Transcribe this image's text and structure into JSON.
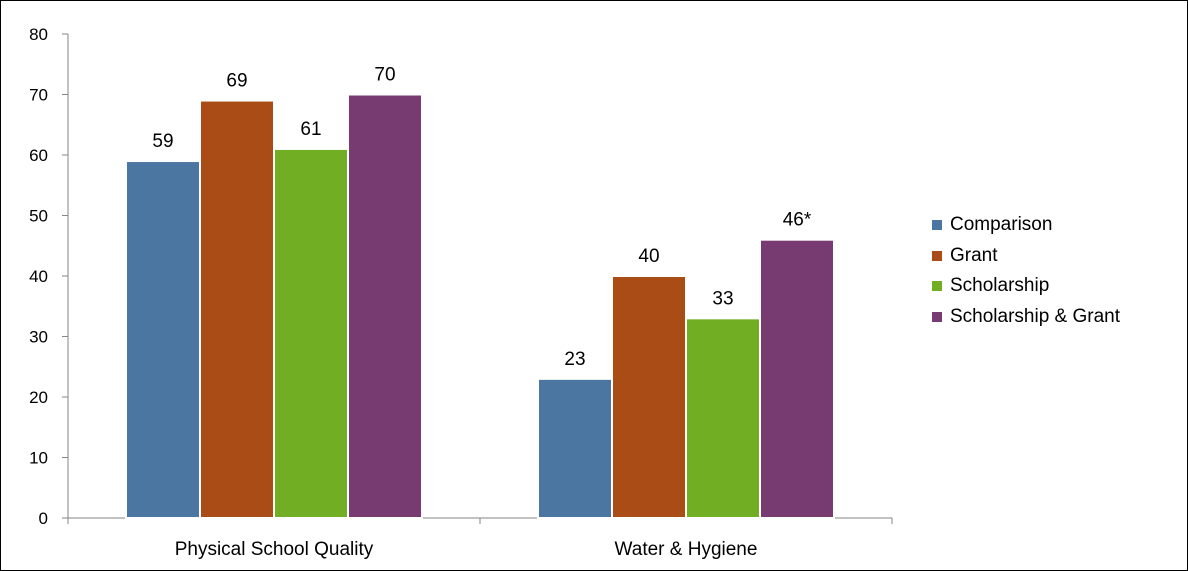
{
  "chart_data": {
    "type": "bar",
    "title": "",
    "xlabel": "",
    "ylabel": "",
    "categories": [
      "Physical School Quality",
      "Water & Hygiene"
    ],
    "series": [
      {
        "name": "Comparison",
        "values": [
          59,
          23
        ],
        "labels": [
          "59",
          "23"
        ],
        "color": "#4a76a1"
      },
      {
        "name": "Grant",
        "values": [
          69,
          40
        ],
        "labels": [
          "69",
          "40"
        ],
        "color": "#aa4c15"
      },
      {
        "name": "Scholarship",
        "values": [
          61,
          33
        ],
        "labels": [
          "61",
          "33"
        ],
        "color": "#72ae24"
      },
      {
        "name": "Scholarship & Grant",
        "values": [
          70,
          46
        ],
        "labels": [
          "70",
          "46*"
        ],
        "color": "#773b71"
      }
    ],
    "ylim": [
      0,
      80
    ],
    "yticks": [
      0,
      10,
      20,
      30,
      40,
      50,
      60,
      70,
      80
    ],
    "grid": false,
    "legend_position": "right"
  }
}
